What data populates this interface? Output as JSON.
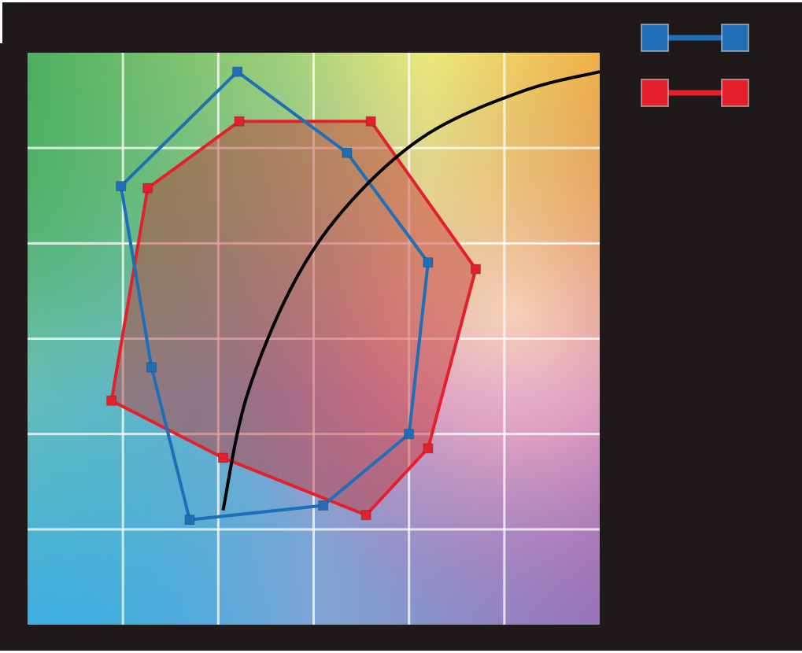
{
  "colors": {
    "background": "#1f1a1a",
    "grid_line": "#ffffff",
    "series_blue": "#1e6fb8",
    "series_red": "#e3202b",
    "red_fill": "#c0302f",
    "curve": "#000000"
  },
  "legend": [
    {
      "series": "blue",
      "marker": "square"
    },
    {
      "series": "red",
      "marker": "square"
    }
  ],
  "chart_data": {
    "type": "scatter",
    "grid": true,
    "xlim": [
      0,
      6
    ],
    "ylim": [
      0,
      6
    ],
    "series": [
      {
        "color": "blue",
        "closed": true,
        "filled": false,
        "points": [
          [
            2.2,
            5.8
          ],
          [
            3.35,
            4.95
          ],
          [
            4.2,
            3.8
          ],
          [
            4.0,
            2.0
          ],
          [
            3.1,
            1.25
          ],
          [
            1.7,
            1.1
          ],
          [
            1.3,
            2.7
          ],
          [
            0.98,
            4.6
          ]
        ]
      },
      {
        "color": "red",
        "closed": true,
        "filled": true,
        "points": [
          [
            2.22,
            5.28
          ],
          [
            3.6,
            5.28
          ],
          [
            4.7,
            3.73
          ],
          [
            4.2,
            1.85
          ],
          [
            3.55,
            1.15
          ],
          [
            2.05,
            1.75
          ],
          [
            0.88,
            2.35
          ],
          [
            1.26,
            4.58
          ]
        ]
      },
      {
        "color": "curve",
        "type": "line",
        "points": [
          [
            2.05,
            1.2
          ],
          [
            2.3,
            2.4
          ],
          [
            2.8,
            3.6
          ],
          [
            3.4,
            4.45
          ],
          [
            4.2,
            5.15
          ],
          [
            5.2,
            5.6
          ],
          [
            6.0,
            5.8
          ]
        ]
      }
    ]
  }
}
